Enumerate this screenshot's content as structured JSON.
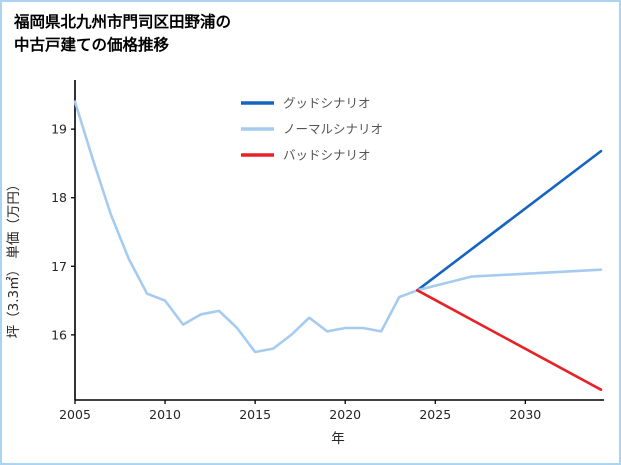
{
  "header": {
    "title_line1": "福岡県北九州市門司区田野浦の",
    "title_line2": "中古戸建ての価格推移"
  },
  "colors": {
    "frame": "#abd3f2",
    "axis": "#000000",
    "tick_label": "#262626",
    "legend_text": "#555555",
    "good_scenario": "#1565c0",
    "normal_scenario": "#a6cbf0",
    "bad_scenario": "#e82127",
    "history_line": "#a6cbf0"
  },
  "chart_data": {
    "type": "line",
    "title": "福岡県北九州市門司区田野浦の中古戸建ての価格推移",
    "xlabel": "年",
    "ylabel": "坪（3.3㎡） 単価（万円）",
    "xlim": [
      2005,
      2034.2
    ],
    "ylim": [
      15.05,
      19.6
    ],
    "xticks": [
      2005,
      2010,
      2015,
      2020,
      2025,
      2030
    ],
    "yticks": [
      16,
      17,
      18,
      19
    ],
    "grid": false,
    "legend_position": "upper center",
    "legend": [
      {
        "label": "グッドシナリオ",
        "color": "#1565c0"
      },
      {
        "label": "ノーマルシナリオ",
        "color": "#a6cbf0"
      },
      {
        "label": "バッドシナリオ",
        "color": "#e82127"
      }
    ],
    "series": [
      {
        "name": "history",
        "color": "#a6cbf0",
        "x": [
          2005,
          2006,
          2007,
          2008,
          2009,
          2010,
          2011,
          2012,
          2013,
          2014,
          2015,
          2016,
          2017,
          2018,
          2019,
          2020,
          2021,
          2022,
          2023,
          2024
        ],
        "y": [
          19.4,
          18.55,
          17.75,
          17.1,
          16.6,
          16.5,
          16.15,
          16.3,
          16.35,
          16.1,
          15.75,
          15.8,
          16.0,
          16.25,
          16.05,
          16.1,
          16.1,
          16.05,
          16.55,
          16.65
        ]
      },
      {
        "name": "グッドシナリオ",
        "color": "#1565c0",
        "x": [
          2024,
          2034.2
        ],
        "y": [
          16.65,
          18.68
        ]
      },
      {
        "name": "ノーマルシナリオ",
        "color": "#a6cbf0",
        "x": [
          2024,
          2027,
          2034.2
        ],
        "y": [
          16.65,
          16.85,
          16.95
        ]
      },
      {
        "name": "バッドシナリオ",
        "color": "#e82127",
        "x": [
          2024,
          2034.2
        ],
        "y": [
          16.65,
          15.2
        ]
      }
    ]
  }
}
